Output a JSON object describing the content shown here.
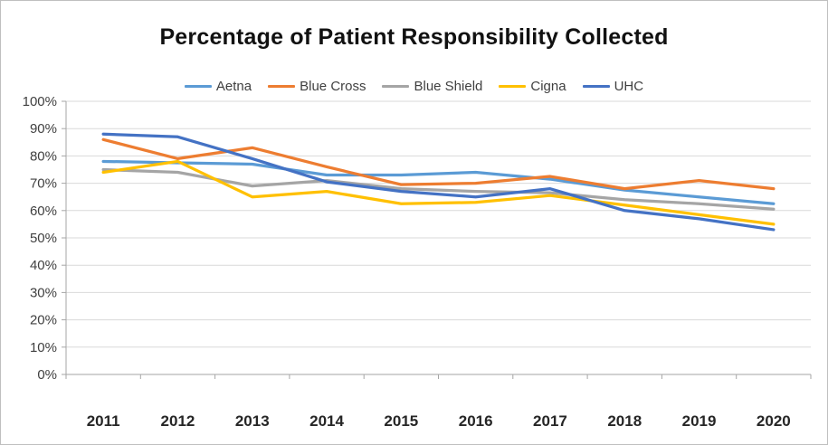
{
  "chart_data": {
    "type": "line",
    "title": "Percentage of Patient Responsibility Collected",
    "categories": [
      "2011",
      "2012",
      "2013",
      "2014",
      "2015",
      "2016",
      "2017",
      "2018",
      "2019",
      "2020"
    ],
    "series": [
      {
        "name": "Aetna",
        "color": "#5B9BD5",
        "values": [
          78,
          77.5,
          77,
          73,
          73,
          74,
          71.5,
          67.5,
          65,
          62.5
        ]
      },
      {
        "name": "Blue Cross",
        "color": "#ED7D31",
        "values": [
          86,
          79,
          83,
          76,
          69.5,
          70,
          72.5,
          68,
          71,
          68
        ]
      },
      {
        "name": "Blue Shield",
        "color": "#A5A5A5",
        "values": [
          75,
          74,
          69,
          71,
          68,
          67,
          66.5,
          64,
          62.5,
          60.5
        ]
      },
      {
        "name": "Cigna",
        "color": "#FFC000",
        "values": [
          74,
          78,
          65,
          67,
          62.5,
          63,
          65.5,
          62,
          58.5,
          55
        ]
      },
      {
        "name": "UHC",
        "color": "#4472C4",
        "values": [
          88,
          87,
          79,
          70.5,
          67,
          65,
          68,
          60,
          57,
          53
        ]
      }
    ],
    "xlabel": "",
    "ylabel": "",
    "ylim": [
      0,
      100
    ],
    "ytick_step": 10,
    "ytick_labels": [
      "0%",
      "10%",
      "20%",
      "30%",
      "40%",
      "50%",
      "60%",
      "70%",
      "80%",
      "90%",
      "100%"
    ],
    "grid": "horizontal",
    "legend_position": "top",
    "colors": {
      "gridline": "#D9D9D9",
      "axis": "#A6A6A6",
      "y_tick_label": "#404040",
      "x_tick_label": "#262626",
      "title": "#111111",
      "legend_text": "#404040",
      "background": "#FFFFFF",
      "frame_border": "#BFBFBF"
    }
  }
}
